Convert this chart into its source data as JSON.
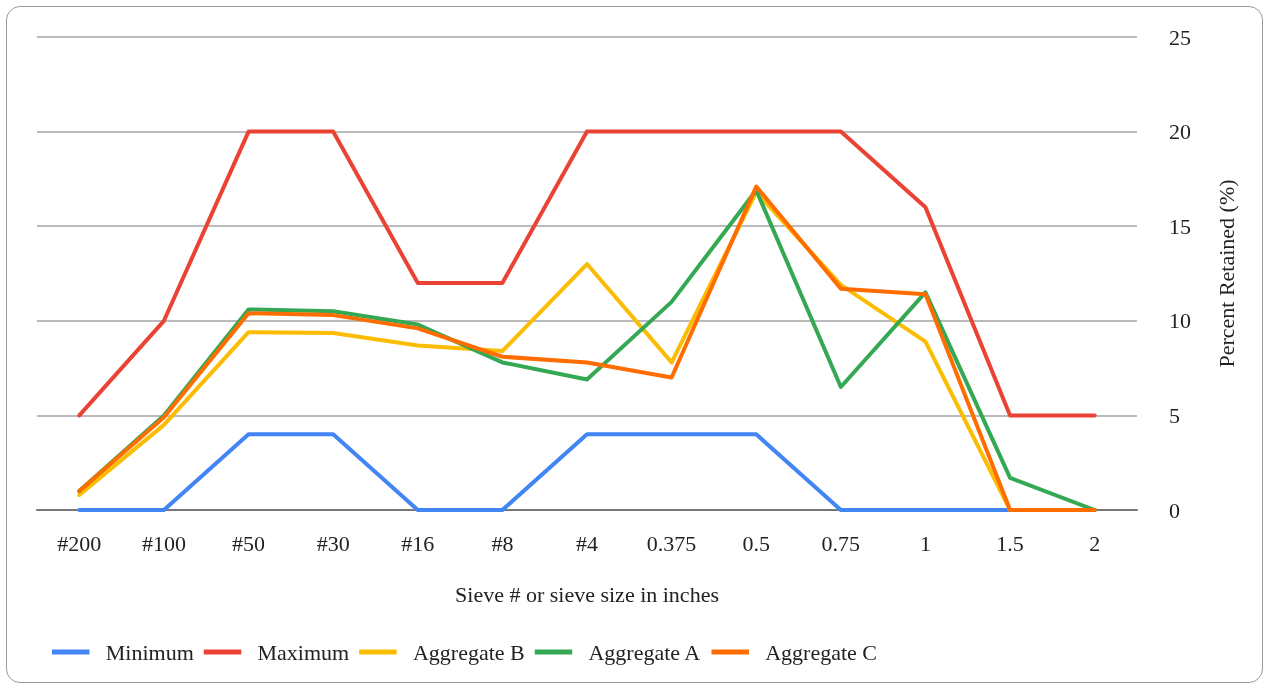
{
  "chart_data": {
    "type": "line",
    "xlabel": "Sieve # or sieve size in inches",
    "ylabel": "Percent Retained (%)",
    "categories": [
      "#200",
      "#100",
      "#50",
      "#30",
      "#16",
      "#8",
      "#4",
      "0.375",
      "0.5",
      "0.75",
      "1",
      "1.5",
      "2"
    ],
    "series": [
      {
        "name": "Minimum",
        "color": "#4285f4",
        "values": [
          0,
          0,
          4,
          4,
          0,
          0,
          4,
          4,
          4,
          0,
          0,
          0,
          0
        ]
      },
      {
        "name": "Maximum",
        "color": "#ea4335",
        "values": [
          5,
          10,
          20,
          20,
          12,
          12,
          20,
          20,
          20,
          20,
          16,
          5,
          5
        ]
      },
      {
        "name": "Aggregate B",
        "color": "#fbbc04",
        "values": [
          0.8,
          4.5,
          9.4,
          9.35,
          8.7,
          8.4,
          13,
          7.8,
          16.8,
          11.9,
          8.9,
          0,
          0
        ]
      },
      {
        "name": "Aggregate A",
        "color": "#34a853",
        "values": [
          1,
          5,
          10.6,
          10.5,
          9.8,
          7.8,
          6.9,
          11,
          16.9,
          6.5,
          11.5,
          1.7,
          0
        ]
      },
      {
        "name": "Aggregate C",
        "color": "#ff6d01",
        "values": [
          1,
          4.9,
          10.4,
          10.3,
          9.6,
          8.1,
          7.8,
          7,
          17.1,
          11.7,
          11.4,
          0,
          0
        ]
      }
    ],
    "ylim": [
      0,
      25
    ],
    "yticks": [
      0,
      5,
      10,
      15,
      20,
      25
    ],
    "grid": "y",
    "legend": "bottom left",
    "marker": "none",
    "line_style": "solid"
  }
}
